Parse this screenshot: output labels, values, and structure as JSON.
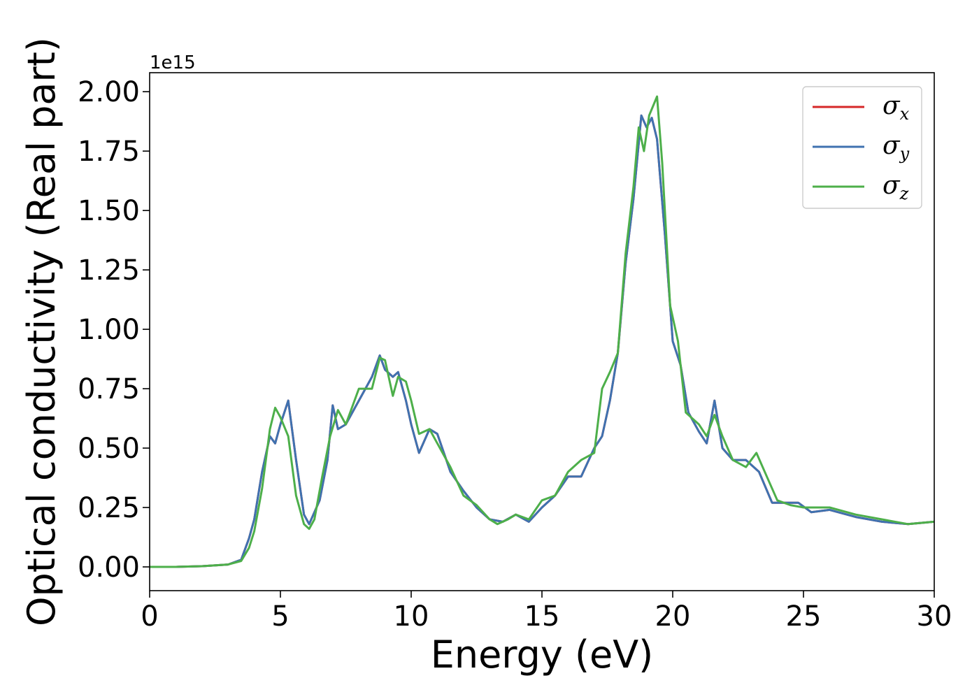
{
  "chart_data": {
    "type": "line",
    "title": "",
    "xlabel": "Energy (eV)",
    "ylabel": "Optical conductivity (Real part)",
    "y_offset_label": "1e15",
    "xlim": [
      0,
      30
    ],
    "ylim": [
      -0.1,
      2.08
    ],
    "x_ticks": [
      0,
      5,
      10,
      15,
      20,
      25,
      30
    ],
    "y_ticks": [
      0.0,
      0.25,
      0.5,
      0.75,
      1.0,
      1.25,
      1.5,
      1.75,
      2.0
    ],
    "x_tick_labels": [
      "0",
      "5",
      "10",
      "15",
      "20",
      "25",
      "30"
    ],
    "y_tick_labels": [
      "0.00",
      "0.25",
      "0.50",
      "0.75",
      "1.00",
      "1.25",
      "1.50",
      "1.75",
      "2.00"
    ],
    "grid": false,
    "legend_position": "top-right",
    "series": [
      {
        "name": "σx",
        "color": "#d62728",
        "x": [
          0,
          1,
          2,
          3,
          3.5,
          3.8,
          4.0,
          4.3,
          4.6,
          4.8,
          5.0,
          5.3,
          5.6,
          5.9,
          6.1,
          6.5,
          6.8,
          7.0,
          7.2,
          7.5,
          8.0,
          8.5,
          8.8,
          9.0,
          9.3,
          9.5,
          9.8,
          10.0,
          10.3,
          10.7,
          11.0,
          11.5,
          12.0,
          12.5,
          13.0,
          13.5,
          14.0,
          14.5,
          15.0,
          15.5,
          16.0,
          16.5,
          17.0,
          17.3,
          17.6,
          17.9,
          18.2,
          18.5,
          18.8,
          19.0,
          19.2,
          19.4,
          19.7,
          20.0,
          20.3,
          20.6,
          21.0,
          21.3,
          21.6,
          21.9,
          22.3,
          22.8,
          23.3,
          23.8,
          24.3,
          24.8,
          25.3,
          26.0,
          27.0,
          28.0,
          29.0,
          30.0
        ],
        "values": [
          0.0,
          0.0,
          0.003,
          0.01,
          0.03,
          0.12,
          0.2,
          0.4,
          0.55,
          0.52,
          0.6,
          0.7,
          0.45,
          0.22,
          0.18,
          0.28,
          0.45,
          0.68,
          0.58,
          0.6,
          0.7,
          0.8,
          0.89,
          0.83,
          0.8,
          0.82,
          0.7,
          0.6,
          0.48,
          0.58,
          0.56,
          0.4,
          0.32,
          0.25,
          0.2,
          0.19,
          0.22,
          0.19,
          0.25,
          0.3,
          0.38,
          0.38,
          0.5,
          0.55,
          0.7,
          0.9,
          1.28,
          1.55,
          1.9,
          1.85,
          1.89,
          1.8,
          1.4,
          0.95,
          0.85,
          0.65,
          0.57,
          0.52,
          0.7,
          0.5,
          0.45,
          0.45,
          0.4,
          0.27,
          0.27,
          0.27,
          0.23,
          0.24,
          0.21,
          0.19,
          0.18,
          0.19
        ]
      },
      {
        "name": "σy",
        "color": "#3f72b0",
        "x": [
          0,
          1,
          2,
          3,
          3.5,
          3.8,
          4.0,
          4.3,
          4.6,
          4.8,
          5.0,
          5.3,
          5.6,
          5.9,
          6.1,
          6.5,
          6.8,
          7.0,
          7.2,
          7.5,
          8.0,
          8.5,
          8.8,
          9.0,
          9.3,
          9.5,
          9.8,
          10.0,
          10.3,
          10.7,
          11.0,
          11.5,
          12.0,
          12.5,
          13.0,
          13.5,
          14.0,
          14.5,
          15.0,
          15.5,
          16.0,
          16.5,
          17.0,
          17.3,
          17.6,
          17.9,
          18.2,
          18.5,
          18.8,
          19.0,
          19.2,
          19.4,
          19.7,
          20.0,
          20.3,
          20.6,
          21.0,
          21.3,
          21.6,
          21.9,
          22.3,
          22.8,
          23.3,
          23.8,
          24.3,
          24.8,
          25.3,
          26.0,
          27.0,
          28.0,
          29.0,
          30.0
        ],
        "values": [
          0.0,
          0.0,
          0.003,
          0.01,
          0.03,
          0.12,
          0.2,
          0.4,
          0.55,
          0.52,
          0.6,
          0.7,
          0.45,
          0.22,
          0.18,
          0.28,
          0.45,
          0.68,
          0.58,
          0.6,
          0.7,
          0.8,
          0.89,
          0.83,
          0.8,
          0.82,
          0.7,
          0.6,
          0.48,
          0.58,
          0.56,
          0.4,
          0.32,
          0.25,
          0.2,
          0.19,
          0.22,
          0.19,
          0.25,
          0.3,
          0.38,
          0.38,
          0.5,
          0.55,
          0.7,
          0.9,
          1.28,
          1.55,
          1.9,
          1.85,
          1.89,
          1.8,
          1.4,
          0.95,
          0.85,
          0.65,
          0.57,
          0.52,
          0.7,
          0.5,
          0.45,
          0.45,
          0.4,
          0.27,
          0.27,
          0.27,
          0.23,
          0.24,
          0.21,
          0.19,
          0.18,
          0.19
        ]
      },
      {
        "name": "σz",
        "color": "#4daf4a",
        "x": [
          0,
          1,
          2,
          3,
          3.5,
          3.8,
          4.0,
          4.3,
          4.6,
          4.8,
          5.0,
          5.3,
          5.6,
          5.9,
          6.1,
          6.3,
          6.6,
          6.9,
          7.2,
          7.5,
          8.0,
          8.5,
          8.8,
          9.0,
          9.3,
          9.5,
          9.8,
          10.0,
          10.3,
          10.7,
          11.0,
          11.5,
          12.0,
          12.5,
          13.0,
          13.3,
          13.7,
          14.0,
          14.5,
          15.0,
          15.5,
          16.0,
          16.5,
          17.0,
          17.3,
          17.6,
          17.9,
          18.2,
          18.5,
          18.7,
          18.9,
          19.1,
          19.4,
          19.6,
          19.9,
          20.2,
          20.5,
          21.0,
          21.3,
          21.6,
          21.9,
          22.3,
          22.8,
          23.2,
          23.6,
          24.0,
          24.5,
          25.0,
          25.5,
          26.0,
          27.0,
          28.0,
          29.0,
          30.0
        ],
        "values": [
          0.0,
          0.0,
          0.003,
          0.01,
          0.025,
          0.08,
          0.15,
          0.33,
          0.58,
          0.67,
          0.63,
          0.55,
          0.3,
          0.18,
          0.16,
          0.2,
          0.38,
          0.55,
          0.66,
          0.6,
          0.75,
          0.75,
          0.88,
          0.87,
          0.72,
          0.8,
          0.78,
          0.7,
          0.56,
          0.58,
          0.52,
          0.42,
          0.3,
          0.26,
          0.2,
          0.18,
          0.2,
          0.22,
          0.2,
          0.28,
          0.3,
          0.4,
          0.45,
          0.48,
          0.75,
          0.82,
          0.9,
          1.32,
          1.6,
          1.85,
          1.75,
          1.9,
          1.98,
          1.7,
          1.1,
          0.95,
          0.65,
          0.6,
          0.55,
          0.64,
          0.55,
          0.45,
          0.42,
          0.48,
          0.38,
          0.28,
          0.26,
          0.25,
          0.25,
          0.25,
          0.22,
          0.2,
          0.18,
          0.19
        ]
      }
    ]
  }
}
